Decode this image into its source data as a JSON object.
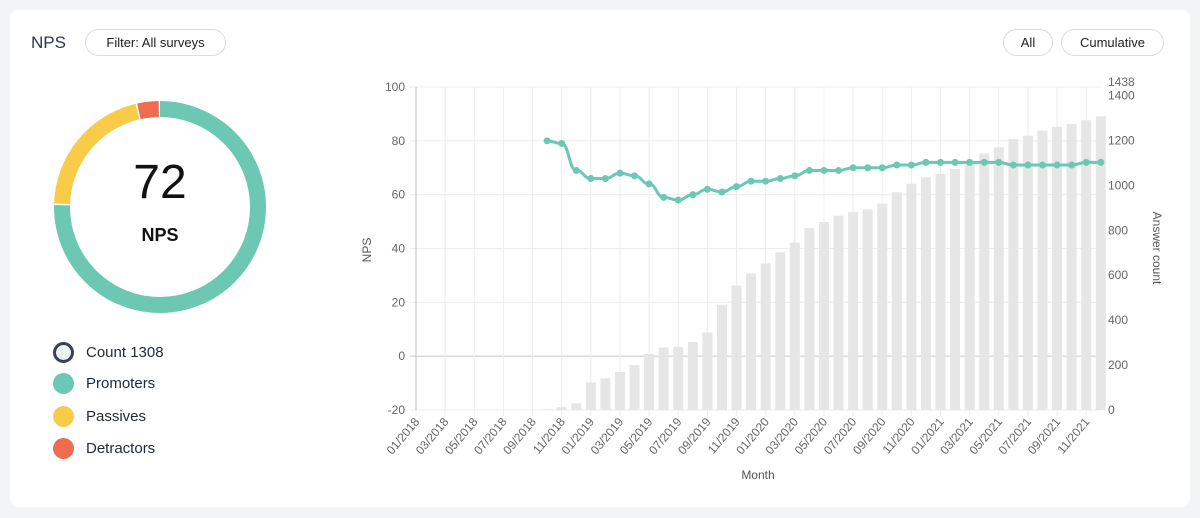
{
  "header": {
    "title": "NPS",
    "filter_label": "Filter: All surveys",
    "range_all": "All",
    "mode_cumulative": "Cumulative"
  },
  "summary": {
    "score": "72",
    "score_label": "NPS"
  },
  "colors": {
    "promoters": "#6cc8b3",
    "passives": "#f8cb48",
    "detractors": "#ef6c50",
    "bars": "#e6e6e6",
    "count_ring": "#374151"
  },
  "donut": [
    {
      "name": "Promoters",
      "fraction": 0.755
    },
    {
      "name": "Passives",
      "fraction": 0.21
    },
    {
      "name": "Detractors",
      "fraction": 0.035
    }
  ],
  "legend": [
    {
      "label": "Count 1308",
      "key": "count"
    },
    {
      "label": "Promoters",
      "key": "promoters"
    },
    {
      "label": "Passives",
      "key": "passives"
    },
    {
      "label": "Detractors",
      "key": "detractors"
    }
  ],
  "chart_data": {
    "type": "bar+line",
    "xlabel": "Month",
    "ylabel": "NPS",
    "y2label": "Answer count",
    "ylim": [
      -20,
      100
    ],
    "y2lim": [
      0,
      1438
    ],
    "yticks": [
      -20,
      0,
      20,
      40,
      60,
      80,
      100
    ],
    "y2ticks": [
      0,
      200,
      400,
      600,
      800,
      1000,
      1200,
      1400,
      1438
    ],
    "grid": true,
    "categories": [
      "01/2018",
      "02/2018",
      "03/2018",
      "04/2018",
      "05/2018",
      "06/2018",
      "07/2018",
      "08/2018",
      "09/2018",
      "10/2018",
      "11/2018",
      "12/2018",
      "01/2019",
      "02/2019",
      "03/2019",
      "04/2019",
      "05/2019",
      "06/2019",
      "07/2019",
      "08/2019",
      "09/2019",
      "10/2019",
      "11/2019",
      "12/2019",
      "01/2020",
      "02/2020",
      "03/2020",
      "04/2020",
      "05/2020",
      "06/2020",
      "07/2020",
      "08/2020",
      "09/2020",
      "10/2020",
      "11/2020",
      "12/2020",
      "01/2021",
      "02/2021",
      "03/2021",
      "04/2021",
      "05/2021",
      "06/2021",
      "07/2021",
      "08/2021",
      "09/2021",
      "10/2021",
      "11/2021",
      "12/2021"
    ],
    "tick_labels": [
      "01/2018",
      "03/2018",
      "05/2018",
      "07/2018",
      "09/2018",
      "11/2018",
      "01/2019",
      "03/2019",
      "05/2019",
      "07/2019",
      "09/2019",
      "11/2019",
      "01/2020",
      "03/2020",
      "05/2020",
      "07/2020",
      "09/2020",
      "11/2020",
      "01/2021",
      "03/2021",
      "05/2021",
      "07/2021",
      "09/2021",
      "11/2021"
    ],
    "series": [
      {
        "type": "bar",
        "axis": "right",
        "values": [
          0,
          0,
          0,
          0,
          0,
          0,
          0,
          0,
          0,
          3,
          13,
          30,
          123,
          141,
          169,
          200,
          249,
          278,
          281,
          303,
          345,
          468,
          554,
          608,
          653,
          702,
          745,
          810,
          837,
          865,
          881,
          893,
          919,
          969,
          1007,
          1036,
          1050,
          1073,
          1095,
          1142,
          1170,
          1206,
          1221,
          1244,
          1261,
          1273,
          1290,
          1308
        ]
      },
      {
        "type": "line",
        "axis": "left",
        "values": [
          null,
          null,
          null,
          null,
          null,
          null,
          null,
          null,
          null,
          80,
          79,
          69,
          66,
          66,
          68,
          67,
          64,
          59,
          58,
          60,
          62,
          61,
          63,
          65,
          65,
          66,
          67,
          69,
          69,
          69,
          70,
          70,
          70,
          71,
          71,
          72,
          72,
          72,
          72,
          72,
          72,
          71,
          71,
          71,
          71,
          71,
          72,
          72
        ]
      }
    ]
  }
}
